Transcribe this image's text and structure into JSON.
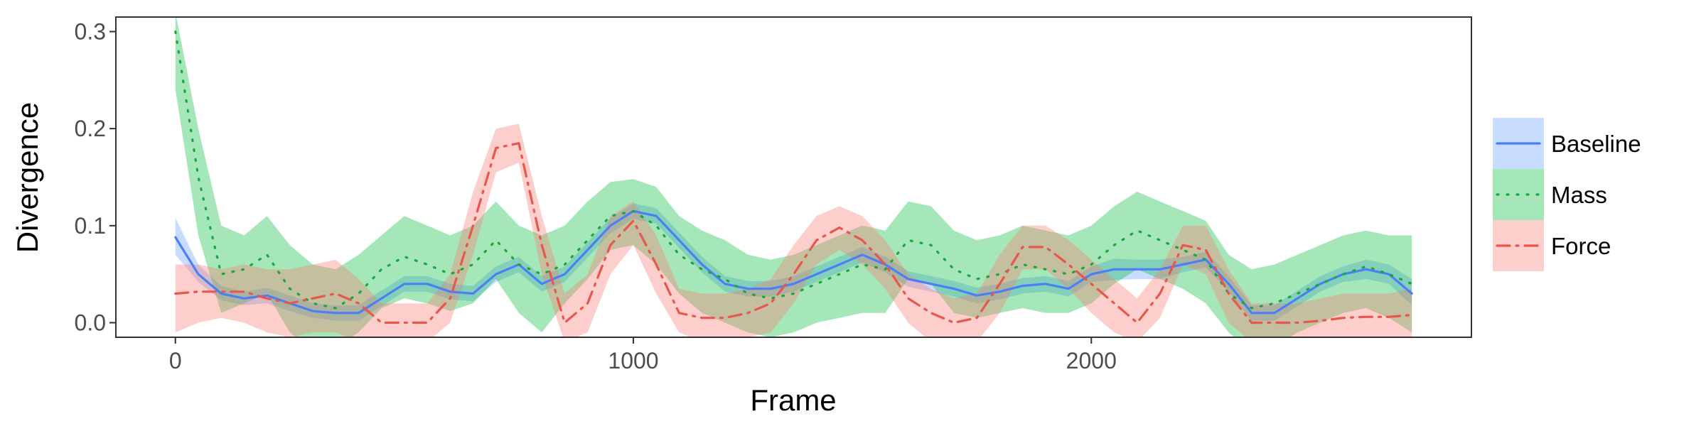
{
  "chart_data": {
    "type": "line",
    "xlabel": "Frame",
    "ylabel": "Divergence",
    "xlim": [
      -130,
      2830
    ],
    "ylim": [
      -0.015,
      0.315
    ],
    "xticks": [
      0,
      1000,
      2000
    ],
    "xtick_labels": [
      "0",
      "1000",
      "2000"
    ],
    "yticks": [
      0.0,
      0.1,
      0.2,
      0.3
    ],
    "ytick_labels": [
      "0.0",
      "0.1",
      "0.2",
      "0.3"
    ],
    "grid": false,
    "legend_position": "right",
    "x": [
      0,
      50,
      100,
      150,
      200,
      250,
      300,
      350,
      400,
      450,
      500,
      550,
      600,
      650,
      700,
      750,
      800,
      850,
      900,
      950,
      1000,
      1050,
      1100,
      1150,
      1200,
      1250,
      1300,
      1350,
      1400,
      1450,
      1500,
      1550,
      1600,
      1650,
      1700,
      1750,
      1800,
      1850,
      1900,
      1950,
      2000,
      2050,
      2100,
      2150,
      2200,
      2250,
      2300,
      2350,
      2400,
      2450,
      2500,
      2550,
      2600,
      2650,
      2700
    ],
    "series": [
      {
        "name": "Baseline",
        "color": "#619cff",
        "line_color": "#4a7ff5",
        "dash": "solid",
        "values": [
          0.088,
          0.05,
          0.03,
          0.025,
          0.028,
          0.02,
          0.012,
          0.01,
          0.01,
          0.025,
          0.04,
          0.04,
          0.032,
          0.03,
          0.05,
          0.06,
          0.04,
          0.05,
          0.075,
          0.1,
          0.115,
          0.11,
          0.085,
          0.06,
          0.04,
          0.035,
          0.035,
          0.04,
          0.05,
          0.06,
          0.07,
          0.06,
          0.045,
          0.04,
          0.035,
          0.028,
          0.032,
          0.038,
          0.04,
          0.035,
          0.05,
          0.055,
          0.055,
          0.055,
          0.06,
          0.065,
          0.04,
          0.01,
          0.01,
          0.025,
          0.04,
          0.05,
          0.055,
          0.05,
          0.03
        ],
        "lower": [
          0.07,
          0.042,
          0.023,
          0.018,
          0.02,
          0.012,
          0.005,
          0.002,
          0.002,
          0.017,
          0.032,
          0.032,
          0.024,
          0.022,
          0.042,
          0.052,
          0.032,
          0.042,
          0.067,
          0.092,
          0.107,
          0.102,
          0.077,
          0.052,
          0.032,
          0.027,
          0.027,
          0.032,
          0.042,
          0.052,
          0.062,
          0.052,
          0.037,
          0.032,
          0.027,
          0.02,
          0.024,
          0.03,
          0.032,
          0.027,
          0.042,
          0.044,
          0.045,
          0.045,
          0.052,
          0.057,
          0.032,
          0.002,
          0.002,
          0.017,
          0.032,
          0.042,
          0.045,
          0.04,
          0.018
        ],
        "upper": [
          0.108,
          0.06,
          0.038,
          0.032,
          0.036,
          0.028,
          0.02,
          0.018,
          0.018,
          0.033,
          0.048,
          0.048,
          0.04,
          0.038,
          0.058,
          0.068,
          0.048,
          0.058,
          0.083,
          0.108,
          0.123,
          0.118,
          0.093,
          0.068,
          0.048,
          0.043,
          0.043,
          0.048,
          0.058,
          0.068,
          0.078,
          0.068,
          0.053,
          0.048,
          0.043,
          0.036,
          0.04,
          0.046,
          0.048,
          0.043,
          0.058,
          0.066,
          0.065,
          0.065,
          0.068,
          0.073,
          0.048,
          0.018,
          0.018,
          0.033,
          0.048,
          0.058,
          0.065,
          0.06,
          0.045
        ]
      },
      {
        "name": "Mass",
        "color": "#00ba38",
        "line_color": "#1aa83c",
        "dash": "dotted",
        "values": [
          0.3,
          0.15,
          0.05,
          0.055,
          0.07,
          0.035,
          0.02,
          0.015,
          0.03,
          0.055,
          0.068,
          0.06,
          0.05,
          0.06,
          0.085,
          0.06,
          0.05,
          0.06,
          0.085,
          0.11,
          0.115,
          0.1,
          0.07,
          0.055,
          0.045,
          0.03,
          0.025,
          0.03,
          0.04,
          0.05,
          0.06,
          0.055,
          0.085,
          0.08,
          0.055,
          0.045,
          0.05,
          0.06,
          0.055,
          0.05,
          0.06,
          0.08,
          0.095,
          0.085,
          0.075,
          0.065,
          0.03,
          0.015,
          0.02,
          0.03,
          0.04,
          0.05,
          0.058,
          0.05,
          0.04
        ],
        "lower": [
          0.24,
          0.09,
          0.01,
          0.02,
          0.03,
          -0.01,
          -0.03,
          -0.025,
          -0.01,
          0.015,
          0.025,
          0.02,
          0.012,
          0.02,
          0.045,
          0.01,
          -0.01,
          0.02,
          0.045,
          0.075,
          0.08,
          0.06,
          0.03,
          0.01,
          0.0,
          -0.01,
          -0.015,
          -0.01,
          0.0,
          0.005,
          0.01,
          0.01,
          0.045,
          0.04,
          0.01,
          0.005,
          0.01,
          0.015,
          0.01,
          0.01,
          0.02,
          0.04,
          0.055,
          0.045,
          0.035,
          0.02,
          -0.01,
          -0.03,
          -0.025,
          -0.01,
          0.0,
          0.01,
          0.015,
          0.005,
          -0.01
        ],
        "upper": [
          0.32,
          0.2,
          0.1,
          0.09,
          0.11,
          0.08,
          0.06,
          0.055,
          0.07,
          0.09,
          0.11,
          0.1,
          0.09,
          0.1,
          0.125,
          0.1,
          0.09,
          0.1,
          0.125,
          0.145,
          0.148,
          0.14,
          0.11,
          0.095,
          0.085,
          0.07,
          0.065,
          0.07,
          0.08,
          0.09,
          0.1,
          0.095,
          0.125,
          0.12,
          0.095,
          0.085,
          0.09,
          0.1,
          0.095,
          0.09,
          0.1,
          0.12,
          0.135,
          0.125,
          0.115,
          0.105,
          0.07,
          0.055,
          0.06,
          0.07,
          0.08,
          0.09,
          0.095,
          0.09,
          0.09
        ]
      },
      {
        "name": "Force",
        "color": "#f8766d",
        "line_color": "#e8574c",
        "dash": "dashdot",
        "values": [
          0.03,
          0.032,
          0.032,
          0.032,
          0.025,
          0.02,
          0.025,
          0.03,
          0.02,
          0.0,
          0.0,
          0.0,
          0.025,
          0.1,
          0.18,
          0.185,
          0.08,
          0.0,
          0.02,
          0.08,
          0.105,
          0.06,
          0.01,
          0.005,
          0.005,
          0.01,
          0.02,
          0.05,
          0.085,
          0.098,
          0.085,
          0.06,
          0.025,
          0.01,
          0.0,
          0.005,
          0.04,
          0.078,
          0.078,
          0.06,
          0.04,
          0.02,
          0.0,
          0.03,
          0.08,
          0.075,
          0.03,
          0.0,
          0.0,
          0.0,
          0.002,
          0.005,
          0.006,
          0.006,
          0.008
        ],
        "lower": [
          -0.01,
          0.0,
          0.005,
          0.0,
          -0.01,
          -0.015,
          -0.01,
          -0.01,
          -0.02,
          -0.02,
          -0.02,
          -0.02,
          0.0,
          0.07,
          0.155,
          0.165,
          0.05,
          -0.02,
          -0.01,
          0.05,
          0.08,
          0.03,
          -0.01,
          -0.02,
          -0.02,
          -0.015,
          -0.01,
          0.02,
          0.06,
          0.075,
          0.06,
          0.035,
          0.0,
          -0.02,
          -0.02,
          -0.02,
          0.01,
          0.055,
          0.055,
          0.035,
          0.01,
          -0.01,
          -0.02,
          0.005,
          0.06,
          0.05,
          0.0,
          -0.02,
          -0.02,
          -0.02,
          -0.02,
          -0.02,
          -0.02,
          -0.02,
          -0.02
        ],
        "upper": [
          0.06,
          0.06,
          0.055,
          0.06,
          0.055,
          0.055,
          0.06,
          0.065,
          0.045,
          0.02,
          0.02,
          0.02,
          0.05,
          0.135,
          0.2,
          0.205,
          0.11,
          0.03,
          0.05,
          0.11,
          0.125,
          0.09,
          0.035,
          0.03,
          0.03,
          0.035,
          0.045,
          0.08,
          0.11,
          0.12,
          0.11,
          0.085,
          0.05,
          0.035,
          0.025,
          0.03,
          0.07,
          0.1,
          0.1,
          0.085,
          0.065,
          0.045,
          0.025,
          0.055,
          0.1,
          0.1,
          0.055,
          0.02,
          0.02,
          0.02,
          0.025,
          0.03,
          0.03,
          0.03,
          0.035
        ]
      }
    ]
  }
}
